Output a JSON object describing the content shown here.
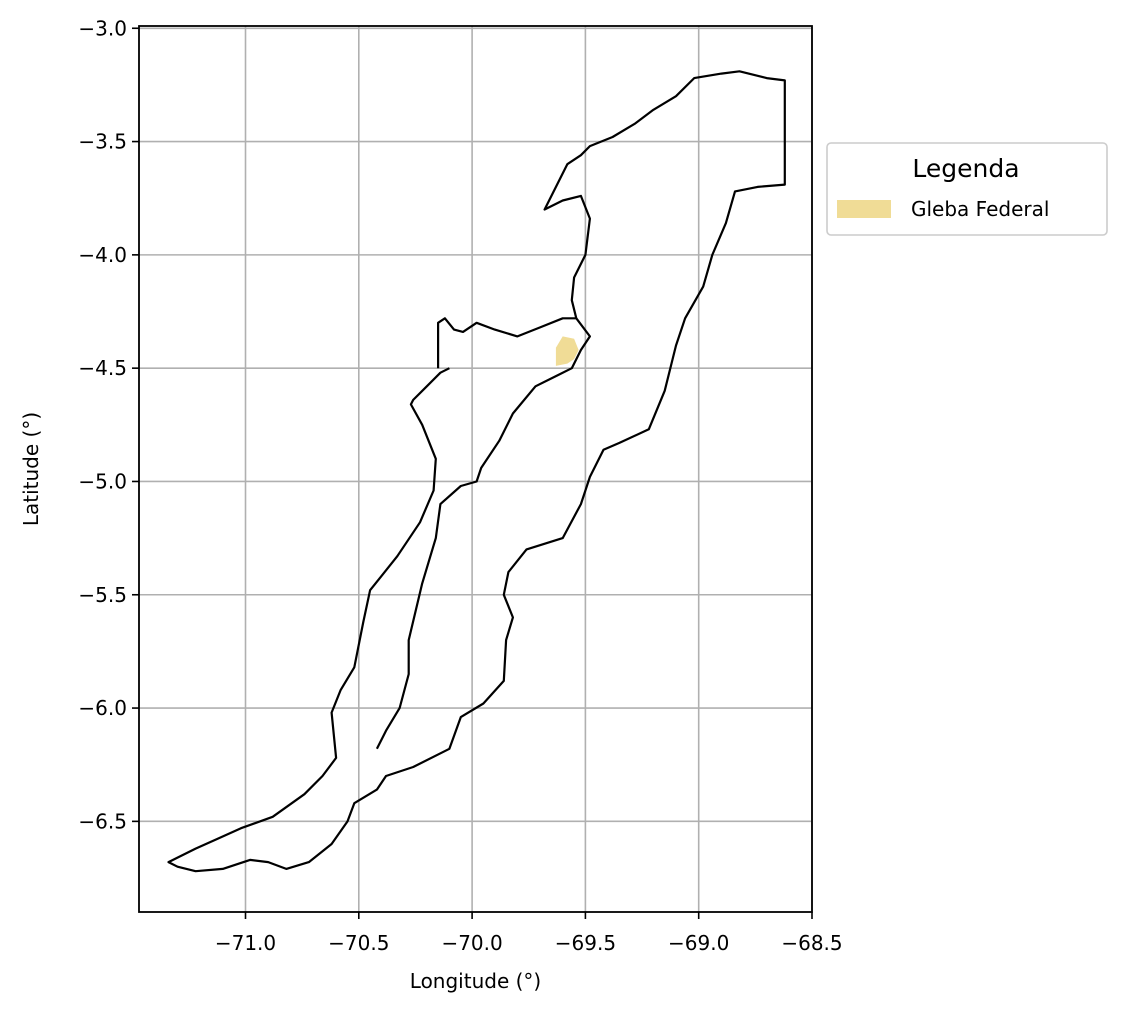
{
  "map": {
    "xaxis": {
      "label": "Longitude (°)",
      "range": [
        -71.47,
        -68.5
      ],
      "ticks": [
        -71.0,
        -70.5,
        -70.0,
        -69.5,
        -69.0,
        -68.5
      ],
      "tick_labels": [
        "−71.0",
        "−70.5",
        "−70.0",
        "−69.5",
        "−69.0",
        "−68.5"
      ]
    },
    "yaxis": {
      "label": "Latitude (°)",
      "range": [
        -6.9,
        -2.99
      ],
      "ticks": [
        -3.0,
        -3.5,
        -4.0,
        -4.5,
        -5.0,
        -5.5,
        -6.0,
        -6.5
      ],
      "tick_labels": [
        "−3.0",
        "−3.5",
        "−4.0",
        "−4.5",
        "−5.0",
        "−5.5",
        "−6.0",
        "−6.5"
      ]
    },
    "grid": true,
    "legend": {
      "title": "Legenda",
      "placement": "outside-right-top",
      "entries": [
        {
          "label": "Gleba Federal",
          "color": "#f0dc96"
        }
      ]
    },
    "colors": {
      "boundary": "#000000",
      "gleba": "#f0dc96",
      "grid": "#b0b0b0"
    },
    "features": {
      "outer_boundary": [
        [
          -70.1,
          -4.5
        ],
        [
          -70.14,
          -4.52
        ],
        [
          -70.2,
          -4.58
        ],
        [
          -70.26,
          -4.64
        ],
        [
          -70.27,
          -4.66
        ],
        [
          -70.22,
          -4.75
        ],
        [
          -70.16,
          -4.9
        ],
        [
          -70.17,
          -5.04
        ],
        [
          -70.23,
          -5.18
        ],
        [
          -70.33,
          -5.33
        ],
        [
          -70.45,
          -5.48
        ],
        [
          -70.48,
          -5.62
        ],
        [
          -70.52,
          -5.82
        ],
        [
          -70.58,
          -5.92
        ],
        [
          -70.62,
          -6.02
        ],
        [
          -70.6,
          -6.22
        ],
        [
          -70.66,
          -6.3
        ],
        [
          -70.74,
          -6.38
        ],
        [
          -70.88,
          -6.48
        ],
        [
          -71.02,
          -6.53
        ],
        [
          -71.13,
          -6.58
        ],
        [
          -71.22,
          -6.62
        ],
        [
          -71.3,
          -6.66
        ],
        [
          -71.34,
          -6.68
        ],
        [
          -71.3,
          -6.7
        ],
        [
          -71.22,
          -6.72
        ],
        [
          -71.1,
          -6.71
        ],
        [
          -70.98,
          -6.67
        ],
        [
          -70.9,
          -6.68
        ],
        [
          -70.82,
          -6.71
        ],
        [
          -70.72,
          -6.68
        ],
        [
          -70.62,
          -6.6
        ],
        [
          -70.55,
          -6.5
        ],
        [
          -70.52,
          -6.42
        ],
        [
          -70.42,
          -6.36
        ],
        [
          -70.38,
          -6.3
        ],
        [
          -70.26,
          -6.26
        ],
        [
          -70.1,
          -6.18
        ],
        [
          -70.05,
          -6.04
        ],
        [
          -69.95,
          -5.98
        ],
        [
          -69.86,
          -5.88
        ],
        [
          -69.85,
          -5.7
        ],
        [
          -69.82,
          -5.6
        ],
        [
          -69.86,
          -5.5
        ],
        [
          -69.84,
          -5.4
        ],
        [
          -69.76,
          -5.3
        ],
        [
          -69.6,
          -5.25
        ],
        [
          -69.52,
          -5.1
        ],
        [
          -69.48,
          -4.98
        ],
        [
          -69.42,
          -4.86
        ],
        [
          -69.35,
          -4.83
        ],
        [
          -69.22,
          -4.77
        ],
        [
          -69.15,
          -4.6
        ],
        [
          -69.1,
          -4.4
        ],
        [
          -69.06,
          -4.28
        ],
        [
          -68.98,
          -4.14
        ],
        [
          -68.94,
          -4.0
        ],
        [
          -68.88,
          -3.86
        ],
        [
          -68.84,
          -3.72
        ],
        [
          -68.74,
          -3.7
        ],
        [
          -68.62,
          -3.69
        ],
        [
          -68.62,
          -3.23
        ],
        [
          -68.7,
          -3.22
        ],
        [
          -68.82,
          -3.19
        ],
        [
          -68.9,
          -3.2
        ],
        [
          -69.02,
          -3.22
        ],
        [
          -69.1,
          -3.3
        ],
        [
          -69.2,
          -3.36
        ],
        [
          -69.28,
          -3.42
        ],
        [
          -69.38,
          -3.48
        ],
        [
          -69.48,
          -3.52
        ],
        [
          -69.52,
          -3.56
        ],
        [
          -69.58,
          -3.6
        ],
        [
          -69.62,
          -3.68
        ],
        [
          -69.68,
          -3.8
        ],
        [
          -69.6,
          -3.76
        ],
        [
          -69.52,
          -3.74
        ],
        [
          -69.48,
          -3.84
        ],
        [
          -69.5,
          -4.0
        ],
        [
          -69.55,
          -4.1
        ],
        [
          -69.56,
          -4.2
        ],
        [
          -69.54,
          -4.28
        ],
        [
          -69.48,
          -4.36
        ],
        [
          -69.52,
          -4.42
        ],
        [
          -69.56,
          -4.5
        ],
        [
          -69.62,
          -4.53
        ],
        [
          -69.72,
          -4.58
        ],
        [
          -69.82,
          -4.7
        ],
        [
          -69.88,
          -4.82
        ],
        [
          -69.96,
          -4.94
        ],
        [
          -69.98,
          -5.0
        ],
        [
          -70.05,
          -5.02
        ],
        [
          -70.14,
          -5.1
        ],
        [
          -70.16,
          -5.25
        ],
        [
          -70.22,
          -5.45
        ],
        [
          -70.28,
          -5.7
        ],
        [
          -70.28,
          -5.85
        ],
        [
          -70.32,
          -6.0
        ],
        [
          -70.38,
          -6.1
        ],
        [
          -70.42,
          -6.18
        ]
      ],
      "north_loop": [
        [
          -70.15,
          -4.5
        ],
        [
          -70.15,
          -4.3
        ],
        [
          -70.12,
          -4.28
        ],
        [
          -70.08,
          -4.33
        ],
        [
          -70.04,
          -4.34
        ],
        [
          -69.98,
          -4.3
        ],
        [
          -69.9,
          -4.33
        ],
        [
          -69.8,
          -4.36
        ],
        [
          -69.7,
          -4.32
        ],
        [
          -69.6,
          -4.28
        ],
        [
          -69.54,
          -4.28
        ]
      ],
      "gleba_federal": [
        [
          -69.63,
          -4.41
        ],
        [
          -69.6,
          -4.36
        ],
        [
          -69.55,
          -4.37
        ],
        [
          -69.53,
          -4.42
        ],
        [
          -69.55,
          -4.46
        ],
        [
          -69.58,
          -4.48
        ],
        [
          -69.63,
          -4.49
        ]
      ]
    }
  }
}
